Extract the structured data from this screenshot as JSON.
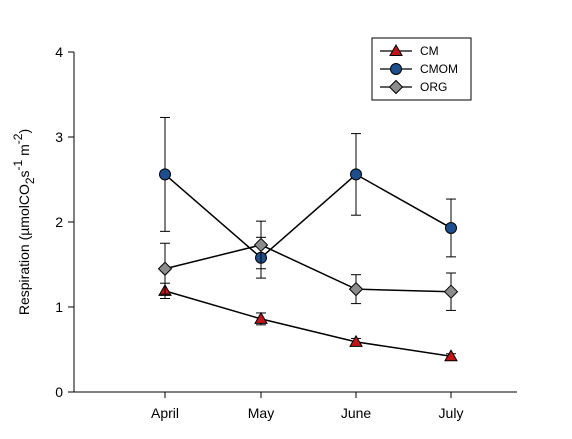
{
  "chart_data": {
    "type": "line",
    "title": "",
    "xlabel": "",
    "ylabel": {
      "prefix": "Respiration (µmolCO",
      "sub": "2",
      "mid1": "s",
      "sup1": "-1",
      "mid2": " m",
      "sup2": "-2",
      "suffix": ")"
    },
    "categories": [
      "April",
      "May",
      "June",
      "July"
    ],
    "ylim": [
      0,
      4
    ],
    "yticks": [
      "0",
      "1",
      "2",
      "3",
      "4"
    ],
    "grid": false,
    "legend_position": "top-right",
    "series": [
      {
        "name": "CM",
        "marker": "triangle",
        "color": "#c0141c",
        "values": [
          1.19,
          0.86,
          0.59,
          0.42
        ],
        "error": [
          0.09,
          0.07,
          0.04,
          0.03
        ]
      },
      {
        "name": "CMOM",
        "marker": "circle",
        "color": "#1f4e8c",
        "values": [
          2.56,
          1.58,
          2.56,
          1.93
        ],
        "error": [
          0.67,
          0.24,
          0.48,
          0.34
        ]
      },
      {
        "name": "ORG",
        "marker": "diamond",
        "color": "#8c8c8c",
        "values": [
          1.45,
          1.73,
          1.21,
          1.18
        ],
        "error": [
          0.3,
          0.28,
          0.17,
          0.22
        ]
      }
    ]
  }
}
